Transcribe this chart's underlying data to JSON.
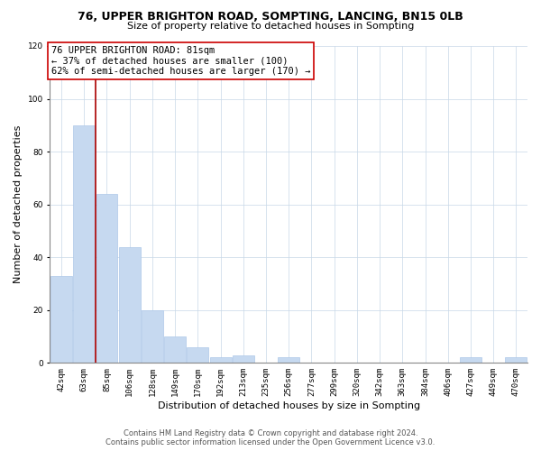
{
  "title": "76, UPPER BRIGHTON ROAD, SOMPTING, LANCING, BN15 0LB",
  "subtitle": "Size of property relative to detached houses in Sompting",
  "xlabel": "Distribution of detached houses by size in Sompting",
  "ylabel": "Number of detached properties",
  "bar_labels": [
    "42sqm",
    "63sqm",
    "85sqm",
    "106sqm",
    "128sqm",
    "149sqm",
    "170sqm",
    "192sqm",
    "213sqm",
    "235sqm",
    "256sqm",
    "277sqm",
    "299sqm",
    "320sqm",
    "342sqm",
    "363sqm",
    "384sqm",
    "406sqm",
    "427sqm",
    "449sqm",
    "470sqm"
  ],
  "bar_values": [
    33,
    90,
    64,
    44,
    20,
    10,
    6,
    2,
    3,
    0,
    2,
    0,
    0,
    0,
    0,
    0,
    0,
    0,
    2,
    0,
    2
  ],
  "bar_color": "#c6d9f0",
  "bar_edge_color": "#aec8e8",
  "vline_color": "#aa0000",
  "vline_x": 1.5,
  "annotation_text": "76 UPPER BRIGHTON ROAD: 81sqm\n← 37% of detached houses are smaller (100)\n62% of semi-detached houses are larger (170) →",
  "annotation_box_color": "#ffffff",
  "annotation_box_edge": "#cc0000",
  "ylim": [
    0,
    120
  ],
  "yticks": [
    0,
    20,
    40,
    60,
    80,
    100,
    120
  ],
  "background_color": "#ffffff",
  "grid_color": "#c8d8e8",
  "footer_line1": "Contains HM Land Registry data © Crown copyright and database right 2024.",
  "footer_line2": "Contains public sector information licensed under the Open Government Licence v3.0.",
  "title_fontsize": 9,
  "subtitle_fontsize": 8,
  "axis_label_fontsize": 8,
  "tick_fontsize": 6.5,
  "annotation_fontsize": 7.5,
  "footer_fontsize": 6
}
